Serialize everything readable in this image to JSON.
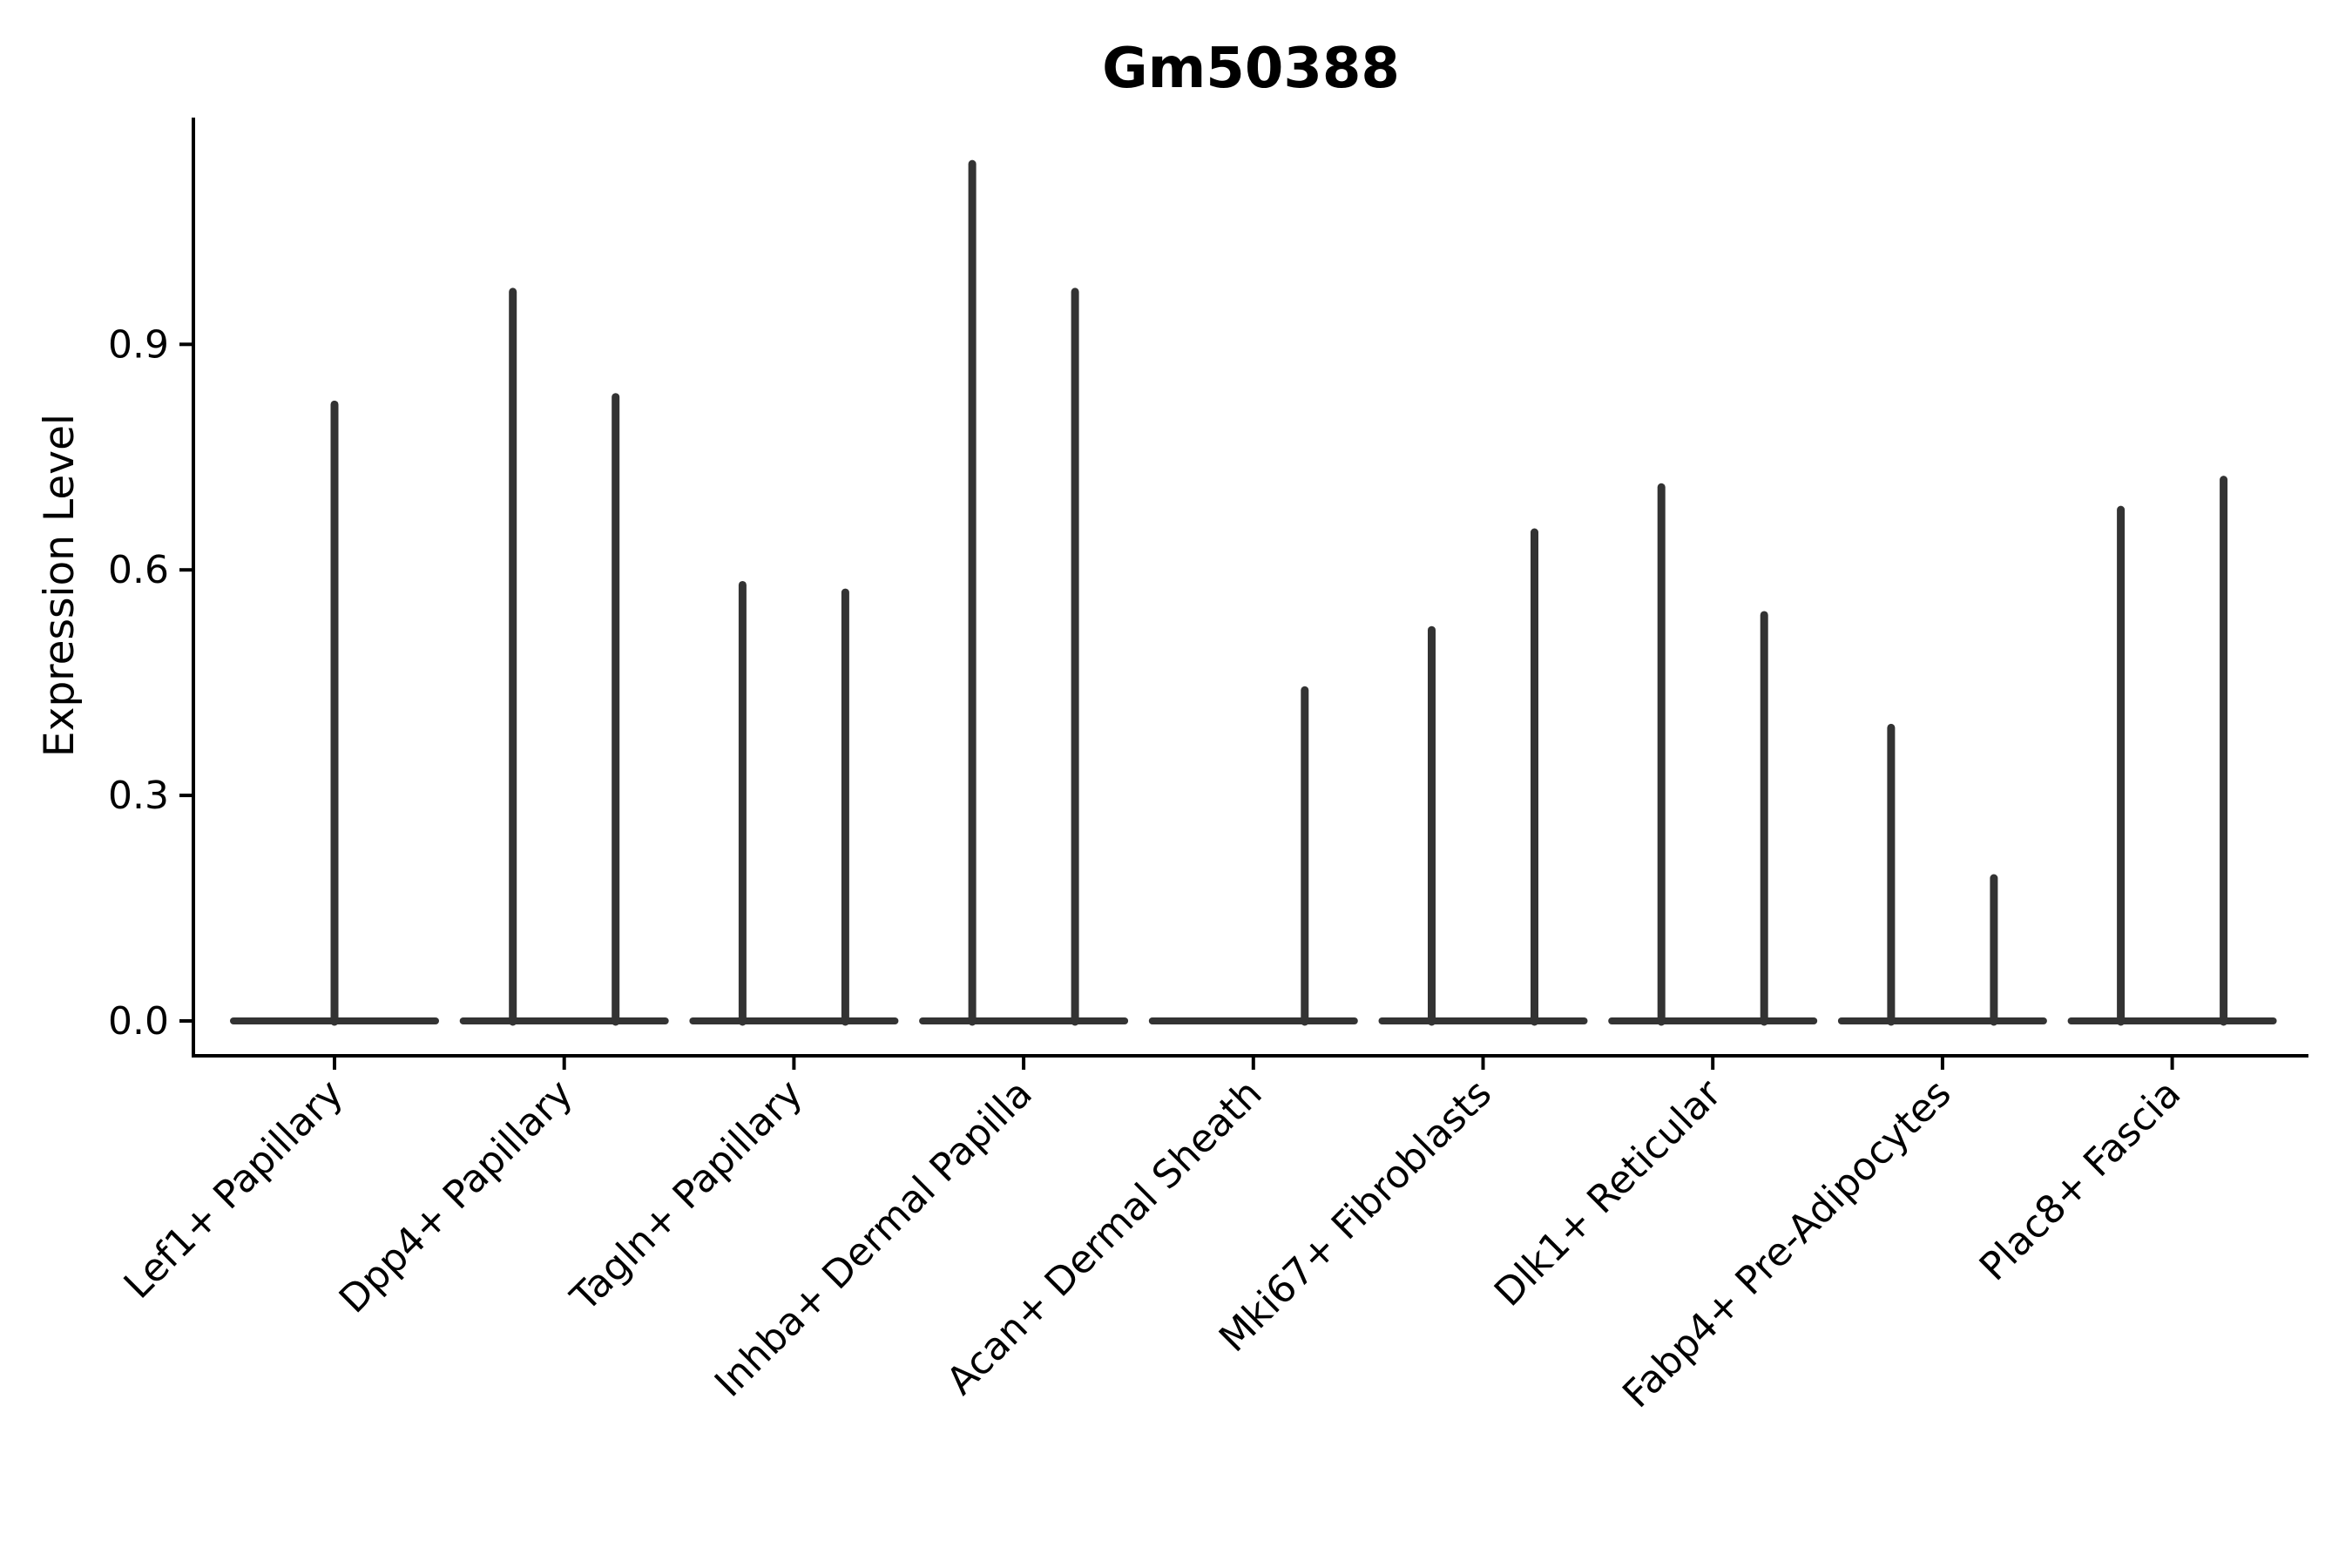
{
  "chart_data": {
    "type": "violin",
    "title": "Gm50388",
    "xlabel": "",
    "ylabel": "Expression Level",
    "ylim": [
      0,
      1.2
    ],
    "yticks": [
      0.0,
      0.3,
      0.6,
      0.9
    ],
    "ytick_labels": [
      "0.0",
      "0.3",
      "0.6",
      "0.9"
    ],
    "grid": false,
    "legend": "none",
    "categories": [
      "Lef1+ Papillary",
      "Dpp4+ Papillary",
      "Tagln+ Papillary",
      "Inhba+ Dermal Papilla",
      "Acan+ Dermal Sheath",
      "Mki67+ Fibroblasts",
      "Dlk1+ Reticular",
      "Fabp4+ Pre-Adipocytes",
      "Plac8+ Fascia"
    ],
    "groups": [
      {
        "category": "Lef1+ Papillary",
        "violins": [
          {
            "slot": "full",
            "max": 0.82
          }
        ]
      },
      {
        "category": "Dpp4+ Papillary",
        "violins": [
          {
            "slot": "left",
            "max": 0.97
          },
          {
            "slot": "right",
            "max": 0.83
          }
        ]
      },
      {
        "category": "Tagln+ Papillary",
        "violins": [
          {
            "slot": "left",
            "max": 0.58
          },
          {
            "slot": "right",
            "max": 0.57
          }
        ]
      },
      {
        "category": "Inhba+ Dermal Papilla",
        "violins": [
          {
            "slot": "left",
            "max": 1.14
          },
          {
            "slot": "right",
            "max": 0.97
          }
        ]
      },
      {
        "category": "Acan+ Dermal Sheath",
        "violins": [
          {
            "slot": "left",
            "max": 0.0
          },
          {
            "slot": "right",
            "max": 0.44
          }
        ]
      },
      {
        "category": "Mki67+ Fibroblasts",
        "violins": [
          {
            "slot": "left",
            "max": 0.52
          },
          {
            "slot": "right",
            "max": 0.65
          }
        ]
      },
      {
        "category": "Dlk1+ Reticular",
        "violins": [
          {
            "slot": "left",
            "max": 0.71
          },
          {
            "slot": "right",
            "max": 0.54
          }
        ]
      },
      {
        "category": "Fabp4+ Pre-Adipocytes",
        "violins": [
          {
            "slot": "left",
            "max": 0.39
          },
          {
            "slot": "right",
            "max": 0.19
          }
        ]
      },
      {
        "category": "Plac8+ Fascia",
        "violins": [
          {
            "slot": "left",
            "max": 0.68
          },
          {
            "slot": "right",
            "max": 0.72
          }
        ]
      }
    ],
    "violin_shape_note": "density collapsed at zero: flat baseline at y=0 with a thin vertical spike up to max expression",
    "colors": {
      "violin": "#333333",
      "axis": "#000000",
      "text": "#000000",
      "background": "#ffffff"
    }
  }
}
